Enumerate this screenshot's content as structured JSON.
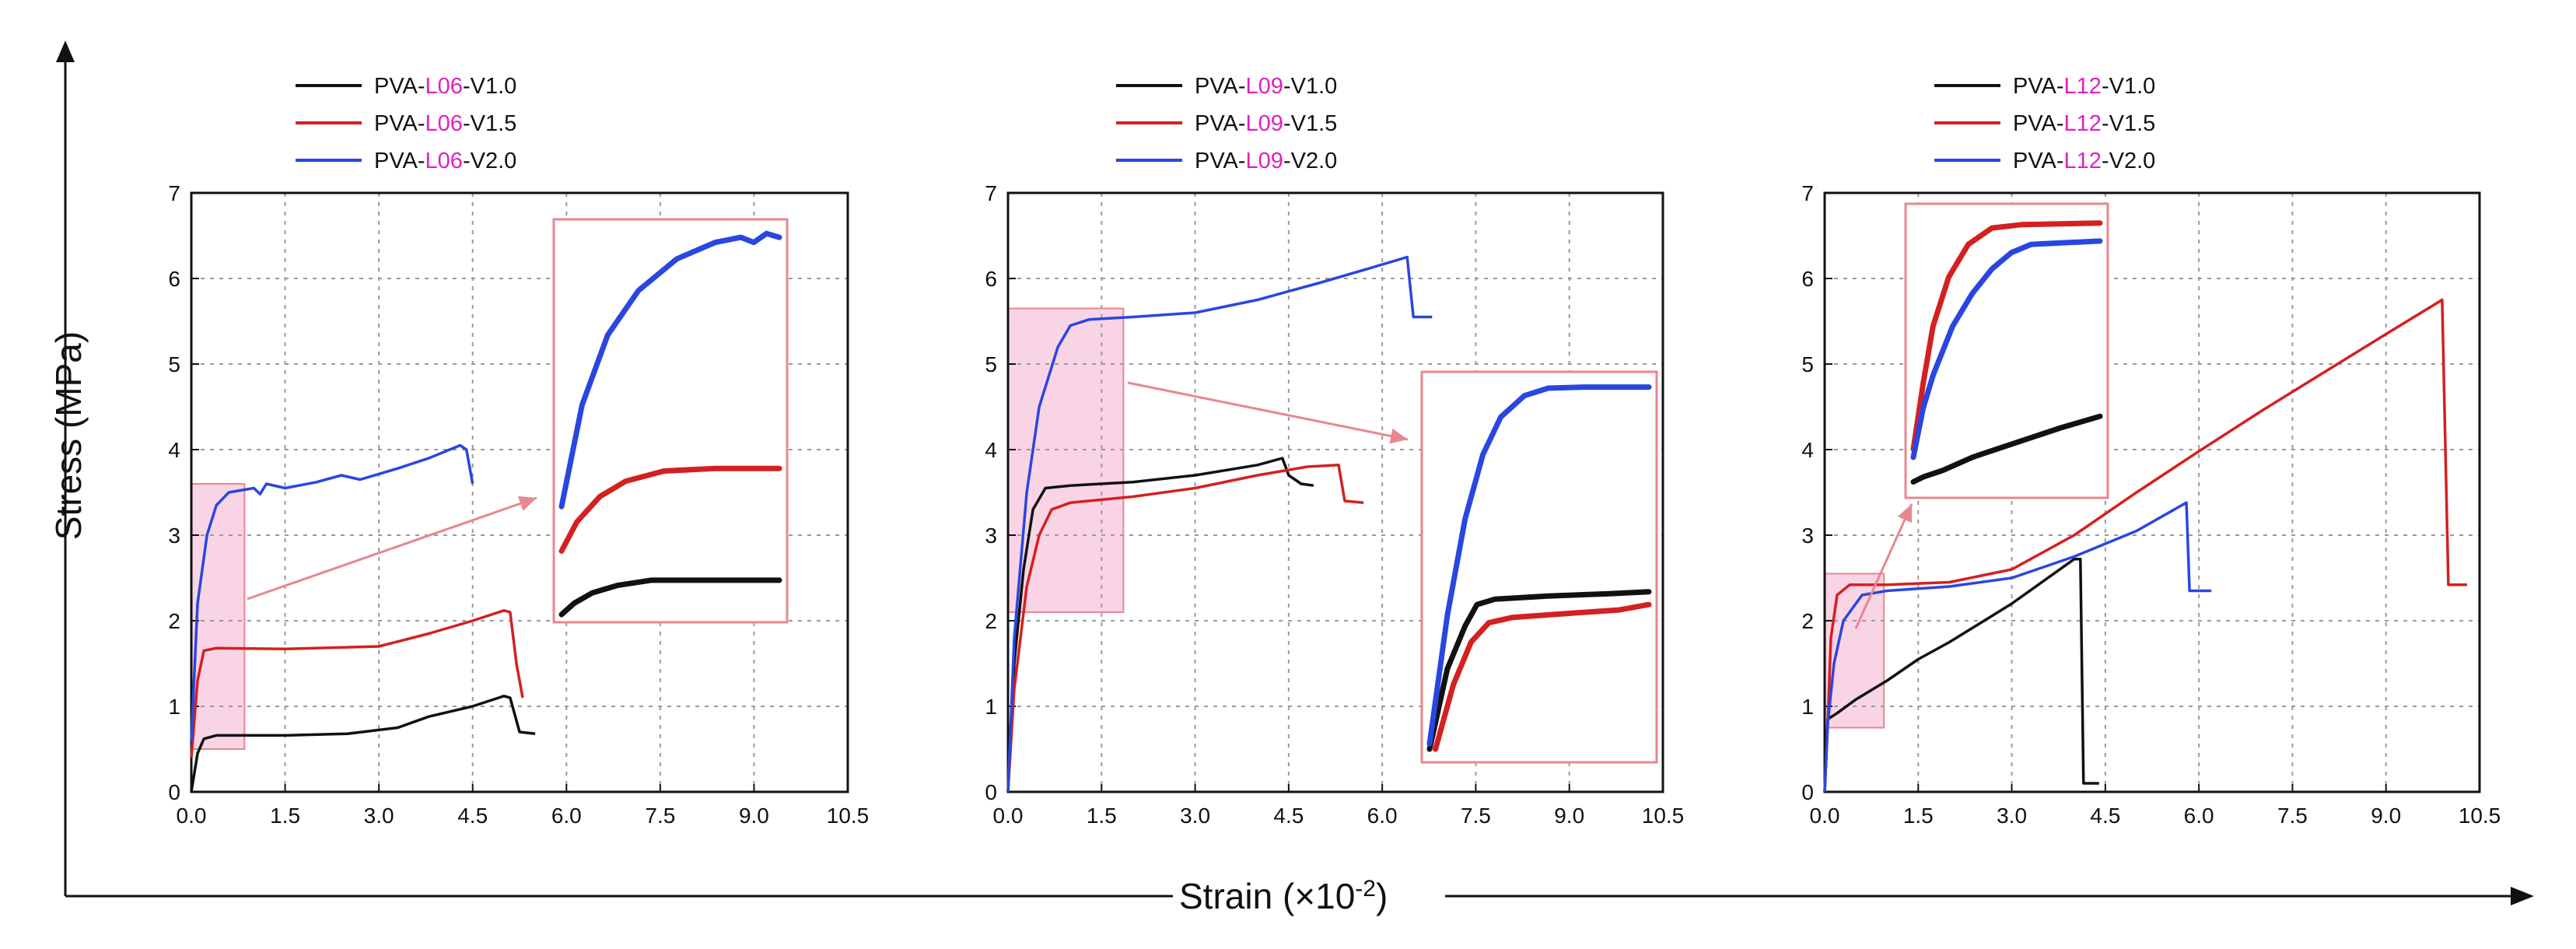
{
  "figure": {
    "y_axis_title": "Stress (MPa)",
    "x_axis_title_main": "Strain (×10",
    "x_axis_title_exp": "-2",
    "x_axis_title_end": ")"
  },
  "colors": {
    "V1.0": "#111111",
    "V1.5": "#d42020",
    "V2.0": "#2a46e0",
    "highlight": "#e020c0",
    "inset": "#e8878f"
  },
  "chart_data": [
    {
      "type": "line",
      "legend": [
        {
          "prefix": "PVA-",
          "fiber": "L06",
          "suffix": "-V1.0",
          "color": "#111111"
        },
        {
          "prefix": "PVA-",
          "fiber": "L06",
          "suffix": "-V1.5",
          "color": "#d42020"
        },
        {
          "prefix": "PVA-",
          "fiber": "L06",
          "suffix": "-V2.0",
          "color": "#2a46e0"
        }
      ],
      "xlim": [
        0,
        10.5
      ],
      "ylim": [
        0,
        7
      ],
      "x_ticks": [
        "0.0",
        "1.5",
        "3.0",
        "4.5",
        "6.0",
        "7.5",
        "9.0",
        "10.5"
      ],
      "y_ticks": [
        "0",
        "1",
        "2",
        "3",
        "4",
        "5",
        "6",
        "7"
      ],
      "series": [
        {
          "name": "PVA-L06-V1.0",
          "color": "#111111",
          "points": [
            [
              0,
              0
            ],
            [
              0.1,
              0.45
            ],
            [
              0.2,
              0.62
            ],
            [
              0.4,
              0.66
            ],
            [
              1.5,
              0.66
            ],
            [
              2.5,
              0.68
            ],
            [
              3.3,
              0.75
            ],
            [
              3.8,
              0.88
            ],
            [
              4.5,
              1.0
            ],
            [
              5.0,
              1.12
            ],
            [
              5.1,
              1.1
            ],
            [
              5.25,
              0.7
            ],
            [
              5.5,
              0.68
            ]
          ]
        },
        {
          "name": "PVA-L06-V1.5",
          "color": "#d42020",
          "points": [
            [
              0,
              0.4
            ],
            [
              0.1,
              1.3
            ],
            [
              0.2,
              1.65
            ],
            [
              0.4,
              1.68
            ],
            [
              1.5,
              1.67
            ],
            [
              3.0,
              1.7
            ],
            [
              3.8,
              1.85
            ],
            [
              4.5,
              2.0
            ],
            [
              5.0,
              2.12
            ],
            [
              5.1,
              2.1
            ],
            [
              5.2,
              1.5
            ],
            [
              5.3,
              1.1
            ]
          ]
        },
        {
          "name": "PVA-L06-V2.0",
          "color": "#2a46e0",
          "points": [
            [
              0,
              0.6
            ],
            [
              0.1,
              2.2
            ],
            [
              0.25,
              3.0
            ],
            [
              0.4,
              3.35
            ],
            [
              0.6,
              3.5
            ],
            [
              1.0,
              3.55
            ],
            [
              1.1,
              3.48
            ],
            [
              1.2,
              3.6
            ],
            [
              1.5,
              3.55
            ],
            [
              2.0,
              3.62
            ],
            [
              2.4,
              3.7
            ],
            [
              2.7,
              3.65
            ],
            [
              3.3,
              3.78
            ],
            [
              3.8,
              3.9
            ],
            [
              4.3,
              4.05
            ],
            [
              4.4,
              4.0
            ],
            [
              4.5,
              3.6
            ]
          ]
        }
      ],
      "highlight_box": {
        "x": [
          0,
          0.85
        ],
        "y": [
          0.5,
          3.6
        ]
      },
      "inset": {
        "xlim": [
          0,
          0.85
        ],
        "ylim": [
          0.55,
          3.6
        ],
        "series": [
          {
            "color": "#111111",
            "points": [
              [
                0,
                0.55
              ],
              [
                0.05,
                0.64
              ],
              [
                0.12,
                0.72
              ],
              [
                0.22,
                0.78
              ],
              [
                0.35,
                0.82
              ],
              [
                0.5,
                0.82
              ],
              [
                0.85,
                0.82
              ]
            ]
          },
          {
            "color": "#d42020",
            "points": [
              [
                0,
                1.05
              ],
              [
                0.06,
                1.28
              ],
              [
                0.15,
                1.48
              ],
              [
                0.25,
                1.6
              ],
              [
                0.4,
                1.68
              ],
              [
                0.6,
                1.7
              ],
              [
                0.85,
                1.7
              ]
            ]
          },
          {
            "color": "#2a46e0",
            "points": [
              [
                0,
                1.4
              ],
              [
                0.08,
                2.2
              ],
              [
                0.18,
                2.75
              ],
              [
                0.3,
                3.1
              ],
              [
                0.45,
                3.35
              ],
              [
                0.6,
                3.48
              ],
              [
                0.7,
                3.52
              ],
              [
                0.75,
                3.48
              ],
              [
                0.8,
                3.55
              ],
              [
                0.85,
                3.52
              ]
            ]
          }
        ]
      }
    },
    {
      "type": "line",
      "legend": [
        {
          "prefix": "PVA-",
          "fiber": "L09",
          "suffix": "-V1.0",
          "color": "#111111"
        },
        {
          "prefix": "PVA-",
          "fiber": "L09",
          "suffix": "-V1.5",
          "color": "#d42020"
        },
        {
          "prefix": "PVA-",
          "fiber": "L09",
          "suffix": "-V2.0",
          "color": "#2a46e0"
        }
      ],
      "xlim": [
        0,
        10.5
      ],
      "ylim": [
        0,
        7
      ],
      "x_ticks": [
        "0.0",
        "1.5",
        "3.0",
        "4.5",
        "6.0",
        "7.5",
        "9.0",
        "10.5"
      ],
      "y_ticks": [
        "0",
        "1",
        "2",
        "3",
        "4",
        "5",
        "6",
        "7"
      ],
      "series": [
        {
          "name": "PVA-L09-V1.0",
          "color": "#111111",
          "points": [
            [
              0,
              0
            ],
            [
              0.1,
              1.5
            ],
            [
              0.25,
              2.6
            ],
            [
              0.4,
              3.3
            ],
            [
              0.6,
              3.55
            ],
            [
              1.0,
              3.58
            ],
            [
              2.0,
              3.62
            ],
            [
              3.0,
              3.7
            ],
            [
              4.0,
              3.82
            ],
            [
              4.4,
              3.9
            ],
            [
              4.5,
              3.7
            ],
            [
              4.7,
              3.6
            ],
            [
              4.9,
              3.58
            ]
          ]
        },
        {
          "name": "PVA-L09-V1.5",
          "color": "#d42020",
          "points": [
            [
              0,
              0
            ],
            [
              0.1,
              1.2
            ],
            [
              0.3,
              2.4
            ],
            [
              0.5,
              3.0
            ],
            [
              0.7,
              3.3
            ],
            [
              1.0,
              3.38
            ],
            [
              2.0,
              3.45
            ],
            [
              3.0,
              3.55
            ],
            [
              4.0,
              3.7
            ],
            [
              4.8,
              3.8
            ],
            [
              5.3,
              3.82
            ],
            [
              5.4,
              3.4
            ],
            [
              5.7,
              3.38
            ]
          ]
        },
        {
          "name": "PVA-L09-V2.0",
          "color": "#2a46e0",
          "points": [
            [
              0,
              0
            ],
            [
              0.1,
              1.8
            ],
            [
              0.3,
              3.5
            ],
            [
              0.5,
              4.5
            ],
            [
              0.8,
              5.2
            ],
            [
              1.0,
              5.45
            ],
            [
              1.3,
              5.52
            ],
            [
              2.0,
              5.55
            ],
            [
              3.0,
              5.6
            ],
            [
              4.0,
              5.75
            ],
            [
              5.0,
              5.95
            ],
            [
              5.8,
              6.12
            ],
            [
              6.4,
              6.25
            ],
            [
              6.5,
              5.55
            ],
            [
              6.8,
              5.55
            ]
          ]
        }
      ],
      "highlight_box": {
        "x": [
          0,
          1.85
        ],
        "y": [
          2.1,
          5.65
        ]
      },
      "inset": {
        "xlim": [
          0,
          1.85
        ],
        "ylim": [
          2.1,
          5.6
        ],
        "series": [
          {
            "color": "#111111",
            "points": [
              [
                0,
                2.15
              ],
              [
                0.15,
                2.9
              ],
              [
                0.3,
                3.3
              ],
              [
                0.4,
                3.5
              ],
              [
                0.55,
                3.55
              ],
              [
                1.0,
                3.58
              ],
              [
                1.5,
                3.6
              ],
              [
                1.85,
                3.62
              ]
            ]
          },
          {
            "color": "#d42020",
            "points": [
              [
                0.05,
                2.15
              ],
              [
                0.2,
                2.75
              ],
              [
                0.35,
                3.15
              ],
              [
                0.5,
                3.33
              ],
              [
                0.7,
                3.38
              ],
              [
                1.2,
                3.42
              ],
              [
                1.6,
                3.45
              ],
              [
                1.85,
                3.5
              ]
            ]
          },
          {
            "color": "#2a46e0",
            "points": [
              [
                0,
                2.2
              ],
              [
                0.15,
                3.4
              ],
              [
                0.3,
                4.3
              ],
              [
                0.45,
                4.9
              ],
              [
                0.6,
                5.25
              ],
              [
                0.8,
                5.45
              ],
              [
                1.0,
                5.52
              ],
              [
                1.3,
                5.53
              ],
              [
                1.85,
                5.53
              ]
            ]
          }
        ]
      }
    },
    {
      "type": "line",
      "legend": [
        {
          "prefix": "PVA-",
          "fiber": "L12",
          "suffix": "-V1.0",
          "color": "#111111"
        },
        {
          "prefix": "PVA-",
          "fiber": "L12",
          "suffix": "-V1.5",
          "color": "#d42020"
        },
        {
          "prefix": "PVA-",
          "fiber": "L12",
          "suffix": "-V2.0",
          "color": "#2a46e0"
        }
      ],
      "xlim": [
        0,
        10.5
      ],
      "ylim": [
        0,
        7
      ],
      "x_ticks": [
        "0.0",
        "1.5",
        "3.0",
        "4.5",
        "6.0",
        "7.5",
        "9.0",
        "10.5"
      ],
      "y_ticks": [
        "0",
        "1",
        "2",
        "3",
        "4",
        "5",
        "6",
        "7"
      ],
      "series": [
        {
          "name": "PVA-L12-V1.0",
          "color": "#111111",
          "points": [
            [
              0,
              0
            ],
            [
              0.05,
              0.85
            ],
            [
              0.2,
              0.92
            ],
            [
              0.5,
              1.08
            ],
            [
              1.0,
              1.3
            ],
            [
              1.5,
              1.55
            ],
            [
              2.0,
              1.75
            ],
            [
              3.0,
              2.2
            ],
            [
              4.0,
              2.72
            ],
            [
              4.1,
              2.72
            ],
            [
              4.15,
              0.1
            ],
            [
              4.4,
              0.1
            ]
          ]
        },
        {
          "name": "PVA-L12-V1.5",
          "color": "#d42020",
          "points": [
            [
              0,
              0
            ],
            [
              0.05,
              0.8
            ],
            [
              0.1,
              1.8
            ],
            [
              0.2,
              2.3
            ],
            [
              0.4,
              2.42
            ],
            [
              1.0,
              2.42
            ],
            [
              2.0,
              2.45
            ],
            [
              3.0,
              2.6
            ],
            [
              4.0,
              3.0
            ],
            [
              5.0,
              3.5
            ],
            [
              6.0,
              3.98
            ],
            [
              7.0,
              4.45
            ],
            [
              8.0,
              4.9
            ],
            [
              9.0,
              5.35
            ],
            [
              9.9,
              5.75
            ],
            [
              10.0,
              2.42
            ],
            [
              10.3,
              2.42
            ]
          ]
        },
        {
          "name": "PVA-L12-V2.0",
          "color": "#2a46e0",
          "points": [
            [
              0,
              0
            ],
            [
              0.05,
              0.8
            ],
            [
              0.15,
              1.5
            ],
            [
              0.3,
              2.0
            ],
            [
              0.6,
              2.3
            ],
            [
              1.0,
              2.35
            ],
            [
              2.0,
              2.4
            ],
            [
              3.0,
              2.5
            ],
            [
              4.0,
              2.75
            ],
            [
              5.0,
              3.05
            ],
            [
              5.8,
              3.38
            ],
            [
              5.85,
              2.35
            ],
            [
              6.2,
              2.35
            ]
          ]
        }
      ],
      "highlight_box": {
        "x": [
          0,
          0.95
        ],
        "y": [
          0.75,
          2.55
        ]
      },
      "inset": {
        "xlim": [
          0,
          0.95
        ],
        "ylim": [
          0.8,
          2.5
        ],
        "series": [
          {
            "color": "#111111",
            "points": [
              [
                0,
                0.85
              ],
              [
                0.05,
                0.88
              ],
              [
                0.15,
                0.92
              ],
              [
                0.3,
                1.0
              ],
              [
                0.45,
                1.06
              ],
              [
                0.6,
                1.12
              ],
              [
                0.75,
                1.18
              ],
              [
                0.95,
                1.25
              ]
            ]
          },
          {
            "color": "#d42020",
            "points": [
              [
                0,
                1.05
              ],
              [
                0.05,
                1.45
              ],
              [
                0.1,
                1.8
              ],
              [
                0.18,
                2.1
              ],
              [
                0.28,
                2.3
              ],
              [
                0.4,
                2.4
              ],
              [
                0.55,
                2.42
              ],
              [
                0.95,
                2.43
              ]
            ]
          },
          {
            "color": "#2a46e0",
            "points": [
              [
                0,
                1.0
              ],
              [
                0.05,
                1.3
              ],
              [
                0.1,
                1.5
              ],
              [
                0.2,
                1.8
              ],
              [
                0.3,
                2.0
              ],
              [
                0.4,
                2.15
              ],
              [
                0.5,
                2.25
              ],
              [
                0.6,
                2.3
              ],
              [
                0.95,
                2.32
              ]
            ]
          }
        ]
      }
    }
  ]
}
